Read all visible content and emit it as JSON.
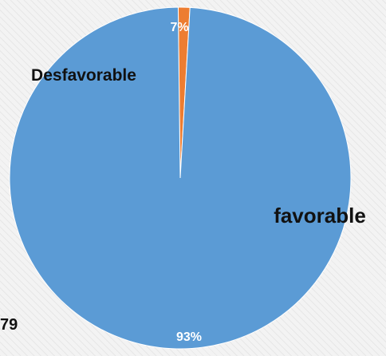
{
  "chart_data": {
    "type": "pie",
    "categories": [
      "Desfavorable",
      "favorable"
    ],
    "values": [
      7,
      93
    ],
    "value_labels": [
      "7%",
      "93%"
    ],
    "colors": [
      "#ED7D31",
      "#5B9BD5"
    ],
    "title": "",
    "legend": "none"
  },
  "edge_text": "79"
}
